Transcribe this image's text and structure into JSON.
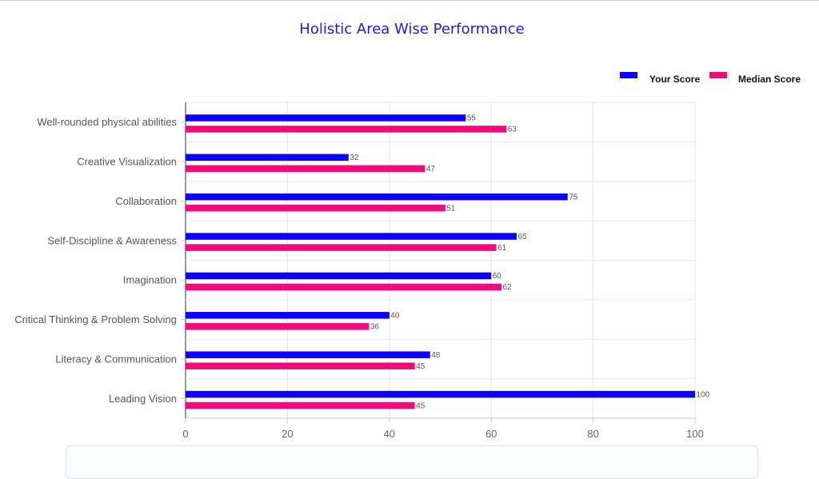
{
  "chart_data": {
    "type": "bar",
    "orientation": "horizontal",
    "title": "Holistic Area Wise Performance",
    "categories": [
      "Well-rounded physical abilities",
      "Creative Visualization",
      "Collaboration",
      "Self-Discipline & Awareness",
      "Imagination",
      "Critical Thinking & Problem Solving",
      "Literacy & Communication",
      "Leading Vision"
    ],
    "series": [
      {
        "name": "Your Score",
        "color": "#0d00ff",
        "values": [
          55,
          32,
          75,
          65,
          60,
          40,
          48,
          100
        ]
      },
      {
        "name": "Median Score",
        "color": "#f50a7c",
        "values": [
          63,
          47,
          51,
          61,
          62,
          36,
          45,
          45
        ]
      }
    ],
    "xlim": [
      0,
      100
    ],
    "xticks": [
      0,
      20,
      40,
      60,
      80,
      100
    ],
    "grid": true,
    "legend_position": "top-right",
    "data_labels": true,
    "title_color": "#1a1aff"
  }
}
